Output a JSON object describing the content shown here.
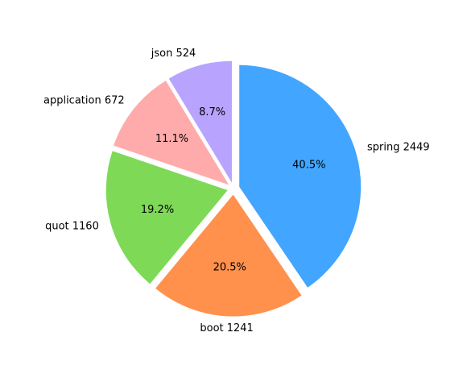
{
  "chart_data": {
    "type": "pie",
    "title": "",
    "slices": [
      {
        "label": "spring",
        "value": 2449,
        "outer_text": "spring 2449",
        "pct_text": "40.5%",
        "color": "#42a5ff"
      },
      {
        "label": "boot",
        "value": 1241,
        "outer_text": "boot 1241",
        "pct_text": "20.5%",
        "color": "#ff914d"
      },
      {
        "label": "quot",
        "value": 1160,
        "outer_text": "quot 1160",
        "pct_text": "19.2%",
        "color": "#7ed957"
      },
      {
        "label": "application",
        "value": 672,
        "outer_text": "application 672",
        "pct_text": "11.1%",
        "color": "#ffabab"
      },
      {
        "label": "json",
        "value": 524,
        "outer_text": "json 524",
        "pct_text": "8.7%",
        "color": "#b8a4ff"
      }
    ],
    "start_angle_deg": 90,
    "direction": "clockwise",
    "exploded": true,
    "legend": "none"
  }
}
